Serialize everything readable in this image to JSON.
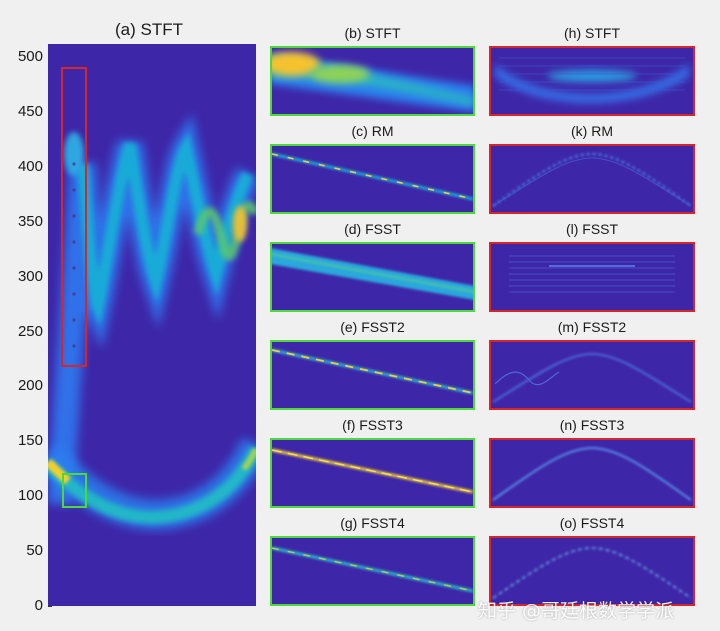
{
  "figure": {
    "main_title": "(a) STFT",
    "middle_titles": [
      "(b) STFT",
      "(c) RM",
      "(d) FSST",
      "(e) FSST2",
      "(f) FSST3",
      "(g) FSST4"
    ],
    "right_titles": [
      "(h) STFT",
      "(k) RM",
      "(l) FSST",
      "(m) FSST2",
      "(n) FSST3",
      "(o) FSST4"
    ],
    "watermark": "知乎 @哥廷根数学学派"
  },
  "chart_data": {
    "type": "heatmap",
    "title": "(a) STFT",
    "yticks": [
      0,
      50,
      100,
      150,
      200,
      250,
      300,
      350,
      400,
      450,
      500
    ],
    "ylim": [
      0,
      512
    ],
    "colormap": "parula",
    "colors": {
      "background": "#3e26a8",
      "box_red": "#d7262b",
      "box_green": "#4ed93b"
    },
    "zoom_boxes": [
      {
        "color": "red",
        "freq_range": [
          220,
          492
        ],
        "linked_panels": "right column (h)-(o)"
      },
      {
        "color": "green",
        "freq_range": [
          90,
          120
        ],
        "linked_panels": "middle column (b)-(g)"
      }
    ]
  }
}
